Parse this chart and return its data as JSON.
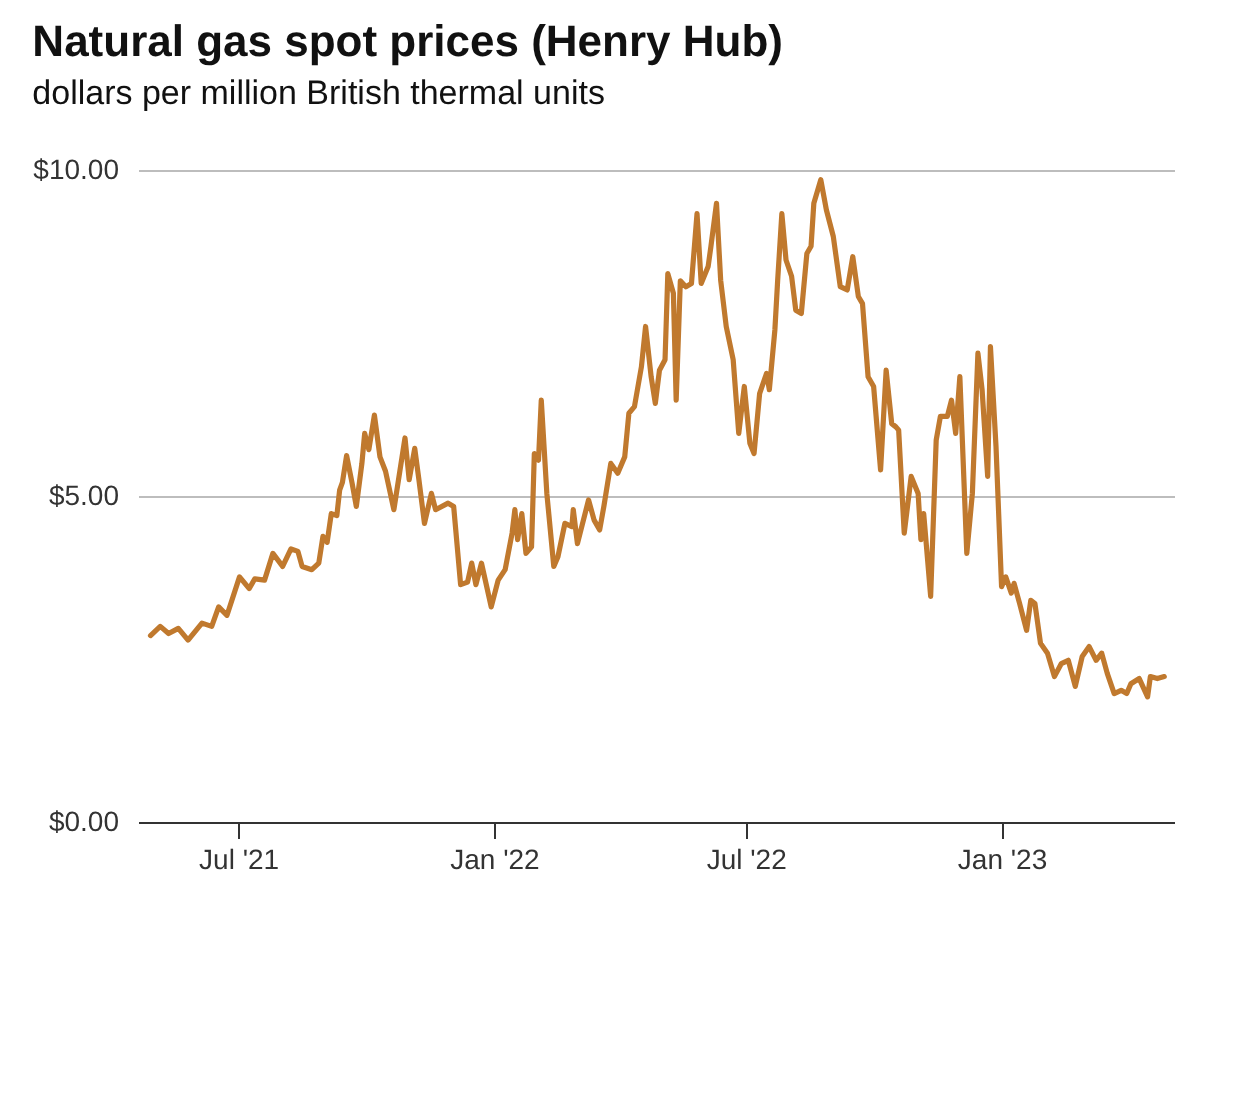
{
  "chart_data": {
    "type": "line",
    "title": "Natural gas spot prices (Henry Hub)",
    "subtitle": "dollars per million British thermal units",
    "x": [
      "2021-04-29",
      "2021-05-06",
      "2021-05-12",
      "2021-05-19",
      "2021-05-26",
      "2021-06-05",
      "2021-06-12",
      "2021-06-17",
      "2021-06-23",
      "2021-07-02",
      "2021-07-09",
      "2021-07-13",
      "2021-07-20",
      "2021-07-26",
      "2021-08-02",
      "2021-08-08",
      "2021-08-13",
      "2021-08-16",
      "2021-08-23",
      "2021-08-28",
      "2021-08-31",
      "2021-09-03",
      "2021-09-06",
      "2021-09-10",
      "2021-09-12",
      "2021-09-14",
      "2021-09-17",
      "2021-09-21",
      "2021-09-24",
      "2021-09-28",
      "2021-09-30",
      "2021-10-03",
      "2021-10-07",
      "2021-10-11",
      "2021-10-15",
      "2021-10-21",
      "2021-10-29",
      "2021-11-01",
      "2021-11-05",
      "2021-11-08",
      "2021-11-12",
      "2021-11-17",
      "2021-11-20",
      "2021-11-29",
      "2021-12-03",
      "2021-12-08",
      "2021-12-13",
      "2021-12-16",
      "2021-12-19",
      "2021-12-23",
      "2021-12-30",
      "2022-01-04",
      "2022-01-09",
      "2022-01-14",
      "2022-01-16",
      "2022-01-18",
      "2022-01-21",
      "2022-01-24",
      "2022-01-28",
      "2022-01-30",
      "2022-02-02",
      "2022-02-04",
      "2022-02-08",
      "2022-02-13",
      "2022-02-16",
      "2022-02-21",
      "2022-02-26",
      "2022-02-27",
      "2022-03-02",
      "2022-03-10",
      "2022-03-14",
      "2022-03-18",
      "2022-03-21",
      "2022-03-26",
      "2022-03-31",
      "2022-04-05",
      "2022-04-08",
      "2022-04-12",
      "2022-04-17",
      "2022-04-20",
      "2022-04-24",
      "2022-04-27",
      "2022-04-30",
      "2022-05-04",
      "2022-05-06",
      "2022-05-10",
      "2022-05-12",
      "2022-05-15",
      "2022-05-19",
      "2022-05-23",
      "2022-05-27",
      "2022-05-30",
      "2022-06-04",
      "2022-06-06",
      "2022-06-10",
      "2022-06-13",
      "2022-06-17",
      "2022-06-22",
      "2022-06-26",
      "2022-06-30",
      "2022-07-04",
      "2022-07-07",
      "2022-07-11",
      "2022-07-16",
      "2022-07-18",
      "2022-07-22",
      "2022-07-24",
      "2022-07-27",
      "2022-07-30",
      "2022-08-03",
      "2022-08-06",
      "2022-08-10",
      "2022-08-14",
      "2022-08-17",
      "2022-08-19",
      "2022-08-24",
      "2022-08-28",
      "2022-09-02",
      "2022-09-07",
      "2022-09-12",
      "2022-09-16",
      "2022-09-20",
      "2022-09-23",
      "2022-09-27",
      "2022-10-01",
      "2022-10-06",
      "2022-10-10",
      "2022-10-14",
      "2022-10-17",
      "2022-10-19",
      "2022-10-23",
      "2022-10-28",
      "2022-11-02",
      "2022-11-04",
      "2022-11-06",
      "2022-11-09",
      "2022-11-11",
      "2022-11-15",
      "2022-11-18",
      "2022-11-23",
      "2022-11-26",
      "2022-11-29",
      "2022-12-02",
      "2022-12-07",
      "2022-12-11",
      "2022-12-15",
      "2022-12-18",
      "2022-12-22",
      "2022-12-24",
      "2022-12-28",
      "2023-01-01",
      "2023-01-04",
      "2023-01-08",
      "2023-01-10",
      "2023-01-14",
      "2023-01-19",
      "2023-01-22",
      "2023-01-25",
      "2023-01-29",
      "2023-02-03",
      "2023-02-08",
      "2023-02-13",
      "2023-02-18",
      "2023-02-23",
      "2023-02-28",
      "2023-03-05",
      "2023-03-10",
      "2023-03-14",
      "2023-03-18",
      "2023-03-23",
      "2023-03-28",
      "2023-04-01",
      "2023-04-04",
      "2023-04-10",
      "2023-04-16",
      "2023-04-18",
      "2023-04-23",
      "2023-04-28"
    ],
    "series": [
      {
        "color": "#c0792e",
        "values": [
          2.86,
          3.0,
          2.89,
          2.97,
          2.79,
          3.05,
          3.0,
          3.3,
          3.17,
          3.76,
          3.58,
          3.73,
          3.71,
          4.12,
          3.92,
          4.19,
          4.15,
          3.92,
          3.87,
          3.97,
          4.38,
          4.29,
          4.73,
          4.7,
          5.09,
          5.21,
          5.62,
          5.19,
          4.84,
          5.5,
          5.96,
          5.71,
          6.24,
          5.6,
          5.38,
          4.79,
          5.89,
          5.25,
          5.73,
          5.25,
          4.58,
          5.04,
          4.79,
          4.89,
          4.84,
          3.64,
          3.68,
          3.97,
          3.64,
          3.97,
          3.3,
          3.71,
          3.87,
          4.43,
          4.79,
          4.33,
          4.73,
          4.12,
          4.22,
          5.65,
          5.55,
          6.47,
          5.04,
          3.92,
          4.07,
          4.58,
          4.53,
          4.79,
          4.27,
          4.94,
          4.63,
          4.48,
          4.84,
          5.5,
          5.35,
          5.6,
          6.27,
          6.37,
          6.98,
          7.6,
          6.83,
          6.42,
          6.93,
          7.09,
          8.41,
          8.11,
          6.47,
          8.3,
          8.21,
          8.26,
          9.33,
          8.26,
          8.52,
          8.83,
          9.49,
          8.31,
          7.6,
          7.09,
          5.96,
          6.68,
          5.81,
          5.65,
          6.57,
          6.88,
          6.63,
          7.55,
          8.31,
          9.33,
          8.62,
          8.37,
          7.85,
          7.8,
          8.72,
          8.83,
          9.49,
          9.85,
          9.39,
          8.98,
          8.21,
          8.16,
          8.67,
          8.06,
          7.95,
          6.83,
          6.68,
          5.4,
          6.93,
          6.11,
          6.06,
          6.01,
          4.43,
          5.3,
          5.04,
          4.33,
          4.73,
          3.97,
          3.46,
          5.86,
          6.22,
          6.22,
          6.47,
          5.96,
          6.83,
          4.12,
          5.04,
          7.19,
          6.63,
          5.3,
          7.29,
          5.76,
          3.61,
          3.76,
          3.51,
          3.66,
          3.35,
          2.94,
          3.4,
          3.35,
          2.74,
          2.59,
          2.23,
          2.43,
          2.48,
          2.08,
          2.54,
          2.69,
          2.48,
          2.59,
          2.28,
          1.97,
          2.02,
          1.97,
          2.12,
          2.2,
          1.92,
          2.23,
          2.2,
          2.23
        ]
      }
    ],
    "xlim": [
      "2021-04-20",
      "2023-05-05"
    ],
    "xticks": [
      {
        "value": "2021-07-01",
        "label": "Jul '21"
      },
      {
        "value": "2022-01-01",
        "label": "Jan '22"
      },
      {
        "value": "2022-07-01",
        "label": "Jul '22"
      },
      {
        "value": "2023-01-01",
        "label": "Jan '23"
      }
    ],
    "ylim": [
      0,
      10
    ],
    "yticks": [
      {
        "value": 0,
        "label": "$0.00"
      },
      {
        "value": 5,
        "label": "$5.00"
      },
      {
        "value": 10,
        "label": "$10.00"
      }
    ],
    "grid": "y",
    "line_style": "solid",
    "marker": "none"
  }
}
